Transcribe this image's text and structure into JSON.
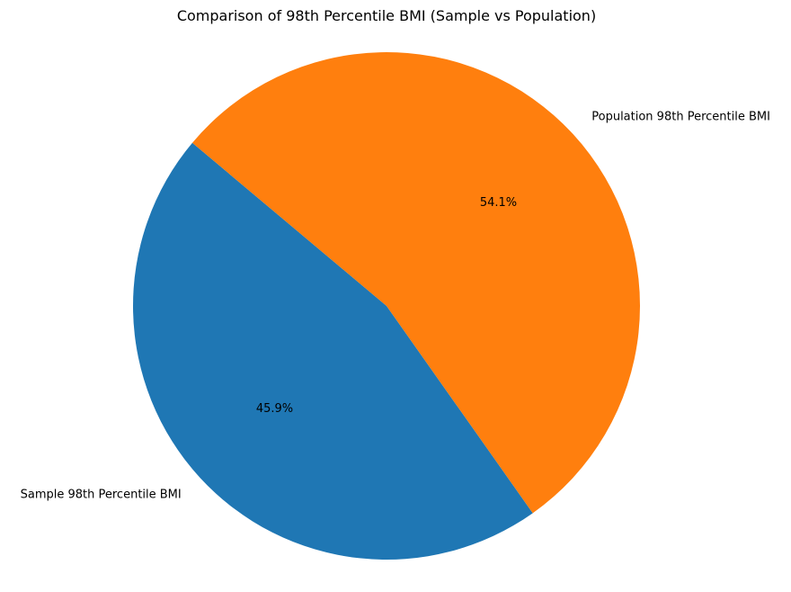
{
  "chart_data": {
    "type": "pie",
    "title": "Comparison of 98th Percentile BMI (Sample vs Population)",
    "start_angle_deg": 140,
    "direction": "counterclockwise",
    "slices": [
      {
        "label": "Sample 98th Percentile BMI",
        "value": 45.9,
        "pct_label": "45.9%",
        "color": "#1f77b4"
      },
      {
        "label": "Population 98th Percentile BMI",
        "value": 54.1,
        "pct_label": "54.1%",
        "color": "#ff7f0e"
      }
    ],
    "legend": "none"
  }
}
